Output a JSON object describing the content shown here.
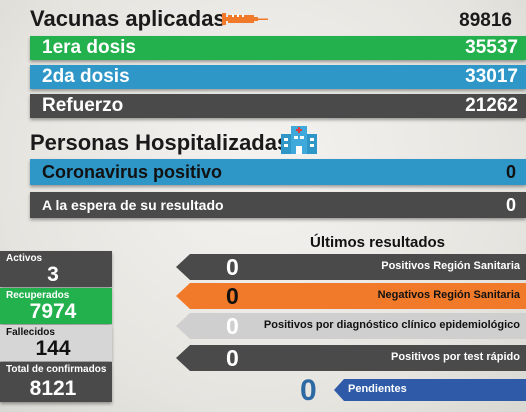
{
  "vacunas": {
    "title": "Vacunas aplicadas",
    "total": "89816",
    "rows": [
      {
        "label": "1era dosis",
        "value": "35537"
      },
      {
        "label": "2da dosis",
        "value": "33017"
      },
      {
        "label": "Refuerzo",
        "value": "21262"
      }
    ]
  },
  "hospitalizadas": {
    "title": "Personas Hospitalizadas",
    "rows": [
      {
        "label": "Coronavirus positivo",
        "value": "0"
      },
      {
        "label": "A la espera de su resultado",
        "value": "0"
      }
    ]
  },
  "stats": [
    {
      "label": "Activos",
      "value": "3"
    },
    {
      "label": "Recuperados",
      "value": "7974"
    },
    {
      "label": "Fallecidos",
      "value": "144"
    },
    {
      "label": "Total de confirmados",
      "value": "8121"
    }
  ],
  "ultimos": {
    "title": "Últimos resultados",
    "rows": [
      {
        "value": "0",
        "label": "Positivos Región Sanitaria"
      },
      {
        "value": "0",
        "label": "Negativos Región Sanitaria"
      },
      {
        "value": "0",
        "label": "Positivos por diagnóstico clínico epidemiológico"
      },
      {
        "value": "0",
        "label": "Positivos por test rápido"
      }
    ],
    "pendientes": {
      "value": "0",
      "label": "Pendientes"
    }
  },
  "icons": [
    "syringe-icon",
    "hospital-icon"
  ],
  "colors": {
    "green": "#22b14c",
    "blue": "#2e97c8",
    "dark": "#4a4a4a",
    "orange": "#f07a2a",
    "navy": "#2e5aa8"
  }
}
